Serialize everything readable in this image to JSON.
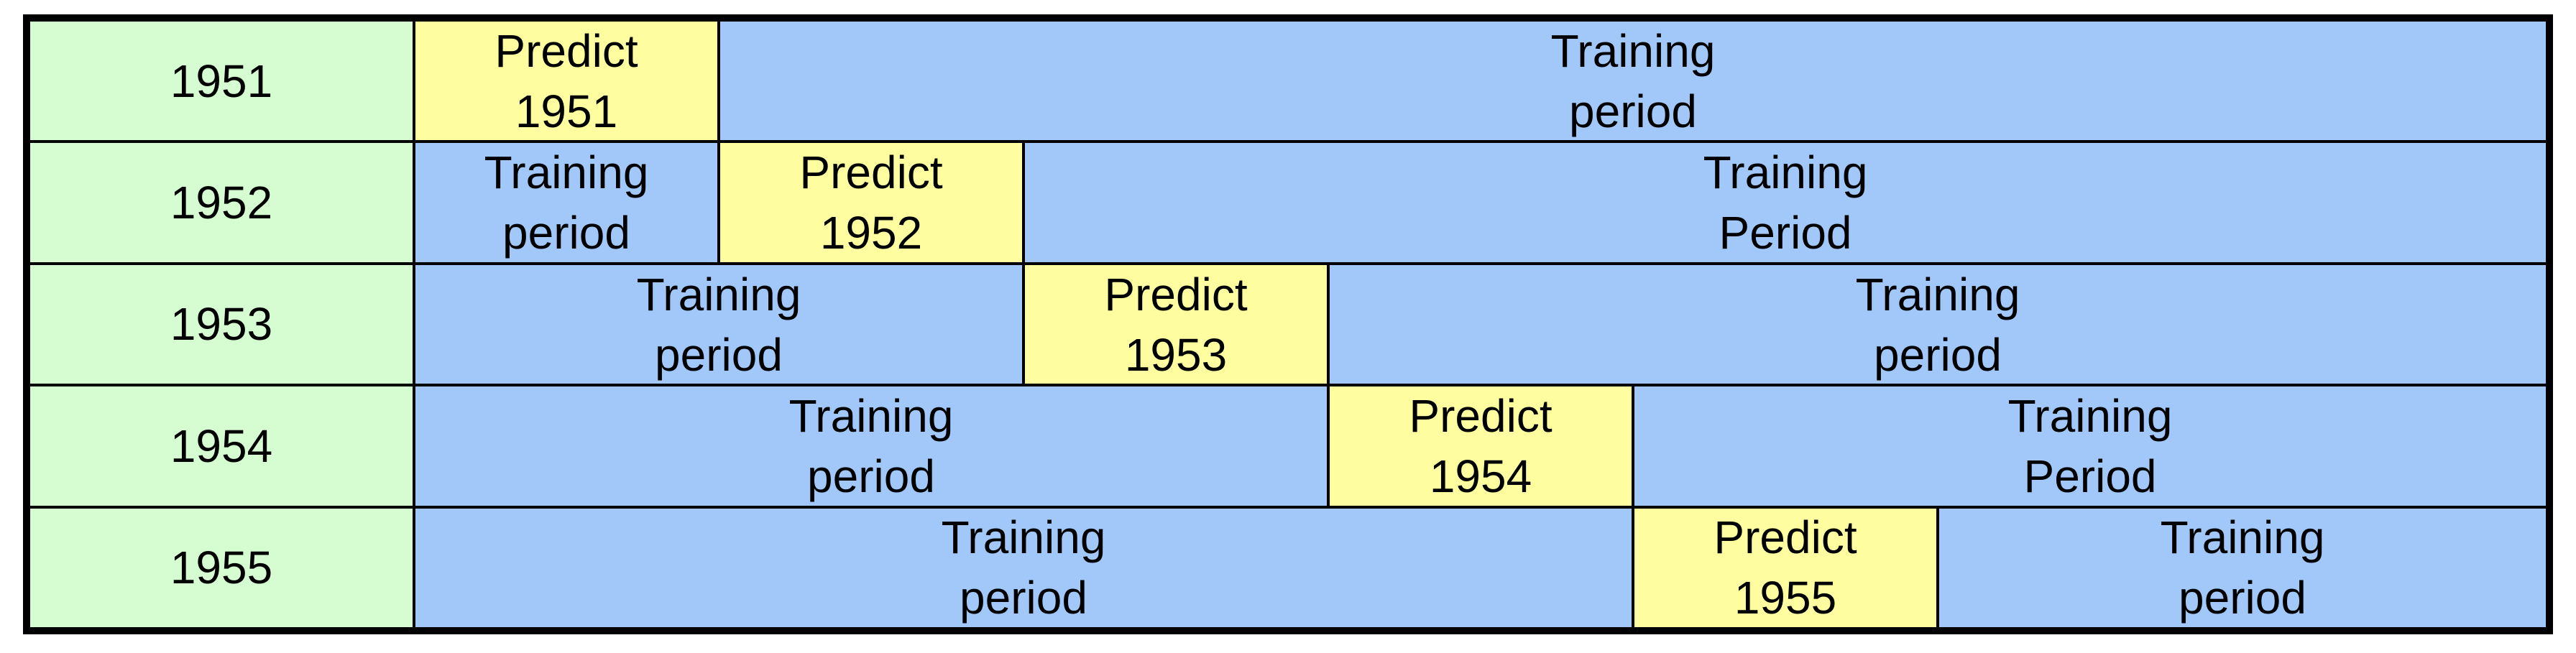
{
  "colors": {
    "year": "#d6fcd1",
    "predict": "#fefea1",
    "training": "#a1c8f9",
    "border": "#000000"
  },
  "rows": [
    {
      "year": "1951",
      "segments": [
        {
          "type": "predict",
          "span": 1,
          "line1": "Predict",
          "line2": "1951"
        },
        {
          "type": "training",
          "span": 6,
          "line1": "Training",
          "line2": "period"
        }
      ]
    },
    {
      "year": "1952",
      "segments": [
        {
          "type": "training",
          "span": 1,
          "line1": "Training",
          "line2": "period"
        },
        {
          "type": "predict",
          "span": 1,
          "line1": "Predict",
          "line2": "1952"
        },
        {
          "type": "training",
          "span": 5,
          "line1": "Training",
          "line2": "Period"
        }
      ]
    },
    {
      "year": "1953",
      "segments": [
        {
          "type": "training",
          "span": 2,
          "line1": "Training",
          "line2": "period"
        },
        {
          "type": "predict",
          "span": 1,
          "line1": "Predict",
          "line2": "1953"
        },
        {
          "type": "training",
          "span": 4,
          "line1": "Training",
          "line2": "period"
        }
      ]
    },
    {
      "year": "1954",
      "segments": [
        {
          "type": "training",
          "span": 3,
          "line1": "Training",
          "line2": "period"
        },
        {
          "type": "predict",
          "span": 1,
          "line1": "Predict",
          "line2": "1954"
        },
        {
          "type": "training",
          "span": 3,
          "line1": "Training",
          "line2": "Period"
        }
      ]
    },
    {
      "year": "1955",
      "segments": [
        {
          "type": "training",
          "span": 4,
          "line1": "Training",
          "line2": "period"
        },
        {
          "type": "predict",
          "span": 1,
          "line1": "Predict",
          "line2": "1955"
        },
        {
          "type": "training",
          "span": 2,
          "line1": "Training",
          "line2": "period"
        }
      ]
    }
  ]
}
